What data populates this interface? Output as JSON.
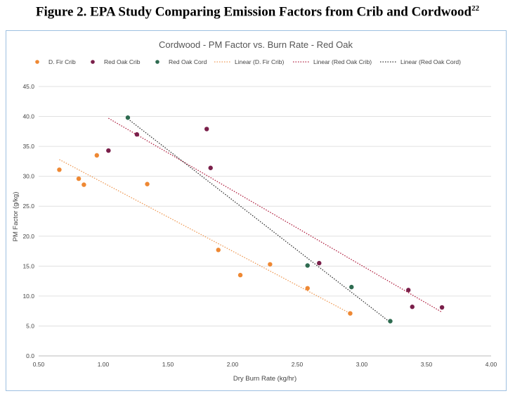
{
  "caption": {
    "text": "Figure 2. EPA Study Comparing Emission Factors from Crib and Cordwood",
    "footnote": "22"
  },
  "chart_data": {
    "type": "scatter",
    "title": "Cordwood - PM Factor vs. Burn Rate - Red Oak",
    "xlabel": "Dry Burn Rate (kg/hr)",
    "ylabel": "PM Factor (g/kg)",
    "xlim": [
      0.5,
      4.0
    ],
    "ylim": [
      0.0,
      45.0
    ],
    "xticks": [
      0.5,
      1.0,
      1.5,
      2.0,
      2.5,
      3.0,
      3.5,
      4.0
    ],
    "xtick_labels": [
      "0.50",
      "1.00",
      "1.50",
      "2.00",
      "2.50",
      "3.00",
      "3.50",
      "4.00"
    ],
    "yticks": [
      0,
      5,
      10,
      15,
      20,
      25,
      30,
      35,
      40,
      45
    ],
    "ytick_labels": [
      "0.0",
      "5.0",
      "10.0",
      "15.0",
      "20.0",
      "25.0",
      "30.0",
      "35.0",
      "40.0",
      "45.0"
    ],
    "grid": "horizontal",
    "legend_position": "top",
    "series": [
      {
        "name": "D. Fir Crib",
        "color": "#ee8833",
        "points": [
          [
            0.66,
            31.1
          ],
          [
            0.81,
            29.6
          ],
          [
            0.85,
            28.6
          ],
          [
            0.95,
            33.5
          ],
          [
            1.34,
            28.7
          ],
          [
            1.89,
            17.7
          ],
          [
            2.06,
            13.5
          ],
          [
            2.29,
            15.3
          ],
          [
            2.58,
            11.3
          ],
          [
            2.91,
            7.1
          ]
        ]
      },
      {
        "name": "Red Oak Crib",
        "color": "#7a1f4a",
        "points": [
          [
            1.04,
            34.3
          ],
          [
            1.26,
            37.0
          ],
          [
            1.8,
            37.9
          ],
          [
            1.83,
            31.4
          ],
          [
            2.67,
            15.5
          ],
          [
            3.36,
            11.0
          ],
          [
            3.39,
            8.2
          ],
          [
            3.62,
            8.1
          ]
        ]
      },
      {
        "name": "Red Oak Cord",
        "color": "#2e6b50",
        "points": [
          [
            1.19,
            39.8
          ],
          [
            2.58,
            15.1
          ],
          [
            2.92,
            11.5
          ],
          [
            3.22,
            5.8
          ]
        ]
      }
    ],
    "trendlines": [
      {
        "name": "Linear (D. Fir Crib)",
        "color": "#ee9955",
        "from": [
          0.66,
          32.8
        ],
        "to": [
          2.91,
          7.1
        ]
      },
      {
        "name": "Linear (Red Oak Crib)",
        "color": "#b02040",
        "from": [
          1.04,
          39.7
        ],
        "to": [
          3.62,
          7.3
        ]
      },
      {
        "name": "Linear (Red Oak Cord)",
        "color": "#333333",
        "from": [
          1.19,
          39.6
        ],
        "to": [
          3.22,
          5.6
        ]
      }
    ]
  }
}
